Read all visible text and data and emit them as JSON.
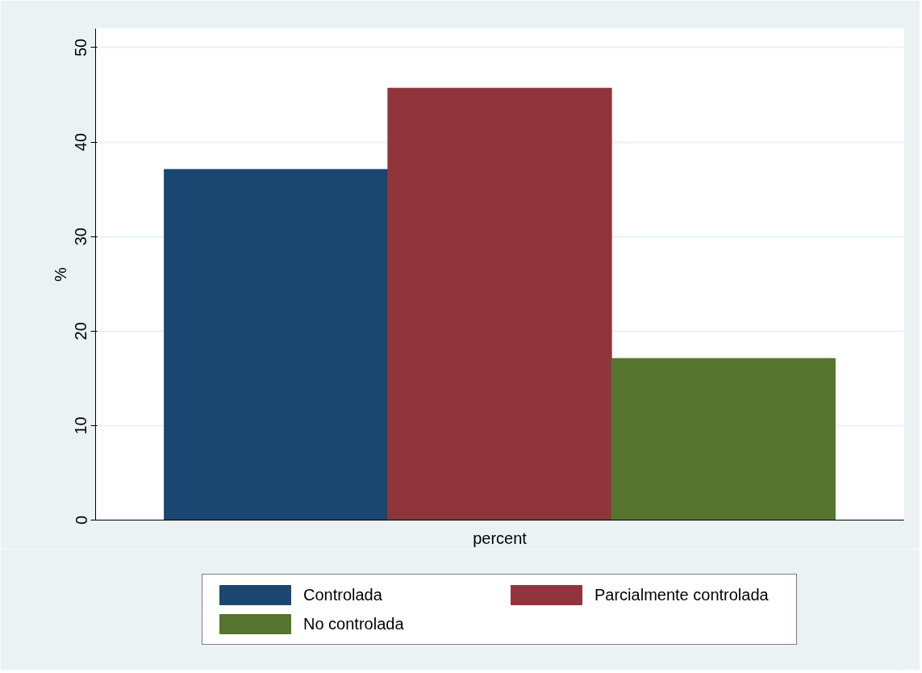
{
  "chart_data": {
    "type": "bar",
    "categories": [
      "percent"
    ],
    "ylabel": "%",
    "series": [
      {
        "name": "Controlada",
        "color": "#1a476f",
        "values": [
          37.1
        ]
      },
      {
        "name": "Parcialmente controlada",
        "color": "#90353b",
        "values": [
          45.7
        ]
      },
      {
        "name": "No controlada",
        "color": "#55752f",
        "values": [
          17.1
        ]
      }
    ],
    "ylim": [
      0,
      52
    ],
    "yticks": [
      0,
      10,
      20,
      30,
      40,
      50
    ],
    "grid": "y",
    "legend": "bottom"
  }
}
